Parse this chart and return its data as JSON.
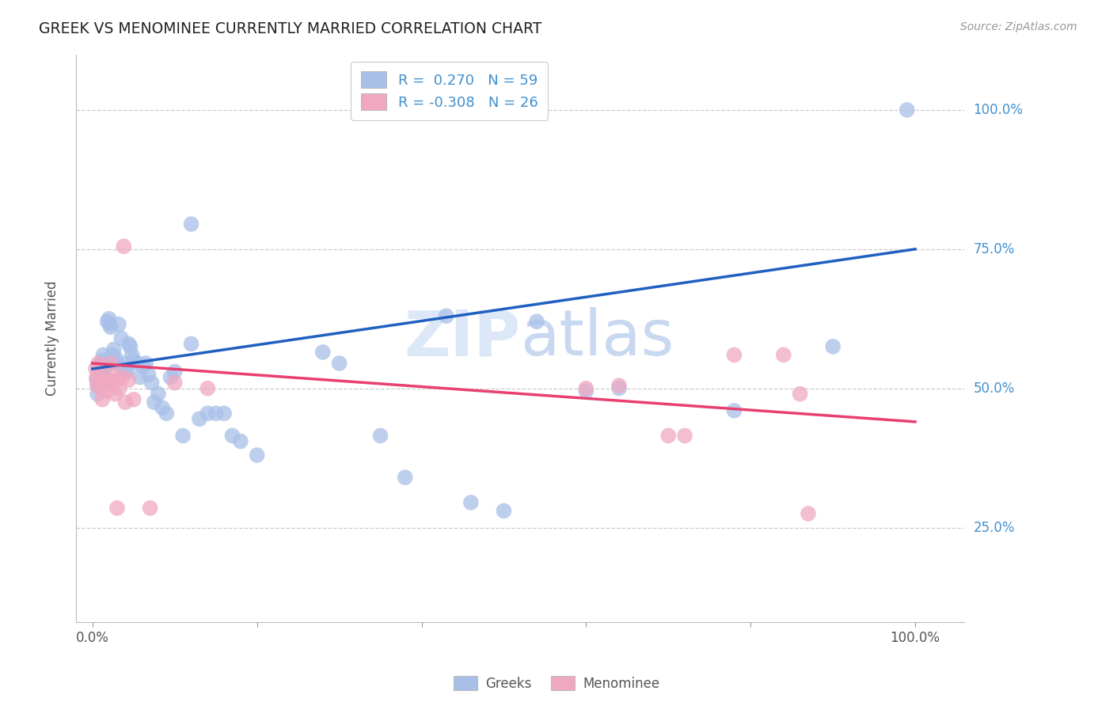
{
  "title": "GREEK VS MENOMINEE CURRENTLY MARRIED CORRELATION CHART",
  "source": "Source: ZipAtlas.com",
  "ylabel": "Currently Married",
  "y_tick_labels": [
    "25.0%",
    "50.0%",
    "75.0%",
    "100.0%"
  ],
  "y_tick_positions": [
    0.25,
    0.5,
    0.75,
    1.0
  ],
  "legend_R_blue": "R =  0.270",
  "legend_N_blue": "N = 59",
  "legend_R_pink": "R = -0.308",
  "legend_N_pink": "N = 26",
  "greek_color": "#a8c0e8",
  "menominee_color": "#f0a8c0",
  "blue_line_color": "#2060c0",
  "pink_line_color": "#e84070",
  "right_label_color": "#4090d0",
  "watermark_color": "#dce8f8",
  "blue_line_start_x": 0.0,
  "blue_line_start_y": 0.535,
  "blue_line_end_x": 1.0,
  "blue_line_end_y": 0.75,
  "pink_line_start_x": 0.0,
  "pink_line_start_y": 0.545,
  "pink_line_end_x": 1.0,
  "pink_line_end_y": 0.44,
  "xlim": [
    -0.02,
    1.06
  ],
  "ylim": [
    0.08,
    1.1
  ],
  "greek_dots": [
    [
      0.005,
      0.515
    ],
    [
      0.006,
      0.505
    ],
    [
      0.006,
      0.49
    ],
    [
      0.007,
      0.52
    ],
    [
      0.008,
      0.535
    ],
    [
      0.009,
      0.54
    ],
    [
      0.01,
      0.545
    ],
    [
      0.011,
      0.53
    ],
    [
      0.012,
      0.55
    ],
    [
      0.013,
      0.56
    ],
    [
      0.014,
      0.525
    ],
    [
      0.015,
      0.51
    ],
    [
      0.016,
      0.54
    ],
    [
      0.018,
      0.62
    ],
    [
      0.02,
      0.625
    ],
    [
      0.021,
      0.615
    ],
    [
      0.022,
      0.61
    ],
    [
      0.024,
      0.56
    ],
    [
      0.026,
      0.57
    ],
    [
      0.028,
      0.555
    ],
    [
      0.03,
      0.545
    ],
    [
      0.032,
      0.615
    ],
    [
      0.035,
      0.59
    ],
    [
      0.038,
      0.545
    ],
    [
      0.04,
      0.535
    ],
    [
      0.042,
      0.53
    ],
    [
      0.044,
      0.58
    ],
    [
      0.046,
      0.575
    ],
    [
      0.048,
      0.56
    ],
    [
      0.05,
      0.55
    ],
    [
      0.055,
      0.545
    ],
    [
      0.058,
      0.52
    ],
    [
      0.062,
      0.54
    ],
    [
      0.065,
      0.545
    ],
    [
      0.068,
      0.525
    ],
    [
      0.072,
      0.51
    ],
    [
      0.075,
      0.475
    ],
    [
      0.08,
      0.49
    ],
    [
      0.085,
      0.465
    ],
    [
      0.09,
      0.455
    ],
    [
      0.095,
      0.52
    ],
    [
      0.1,
      0.53
    ],
    [
      0.11,
      0.415
    ],
    [
      0.12,
      0.58
    ],
    [
      0.13,
      0.445
    ],
    [
      0.14,
      0.455
    ],
    [
      0.15,
      0.455
    ],
    [
      0.16,
      0.455
    ],
    [
      0.17,
      0.415
    ],
    [
      0.18,
      0.405
    ],
    [
      0.2,
      0.38
    ],
    [
      0.12,
      0.795
    ],
    [
      0.28,
      0.565
    ],
    [
      0.3,
      0.545
    ],
    [
      0.35,
      0.415
    ],
    [
      0.38,
      0.34
    ],
    [
      0.43,
      0.63
    ],
    [
      0.46,
      0.295
    ],
    [
      0.5,
      0.28
    ],
    [
      0.54,
      0.62
    ],
    [
      0.6,
      0.495
    ],
    [
      0.64,
      0.5
    ],
    [
      0.78,
      0.46
    ],
    [
      0.9,
      0.575
    ],
    [
      0.99,
      1.0
    ]
  ],
  "menominee_dots": [
    [
      0.004,
      0.535
    ],
    [
      0.005,
      0.52
    ],
    [
      0.006,
      0.505
    ],
    [
      0.007,
      0.545
    ],
    [
      0.008,
      0.525
    ],
    [
      0.01,
      0.5
    ],
    [
      0.012,
      0.48
    ],
    [
      0.015,
      0.51
    ],
    [
      0.018,
      0.495
    ],
    [
      0.02,
      0.515
    ],
    [
      0.022,
      0.545
    ],
    [
      0.025,
      0.525
    ],
    [
      0.027,
      0.49
    ],
    [
      0.03,
      0.515
    ],
    [
      0.033,
      0.5
    ],
    [
      0.036,
      0.52
    ],
    [
      0.04,
      0.475
    ],
    [
      0.044,
      0.515
    ],
    [
      0.05,
      0.48
    ],
    [
      0.038,
      0.755
    ],
    [
      0.03,
      0.285
    ],
    [
      0.07,
      0.285
    ],
    [
      0.1,
      0.51
    ],
    [
      0.14,
      0.5
    ],
    [
      0.6,
      0.5
    ],
    [
      0.64,
      0.505
    ],
    [
      0.7,
      0.415
    ],
    [
      0.72,
      0.415
    ],
    [
      0.78,
      0.56
    ],
    [
      0.84,
      0.56
    ],
    [
      0.86,
      0.49
    ],
    [
      0.87,
      0.275
    ]
  ]
}
